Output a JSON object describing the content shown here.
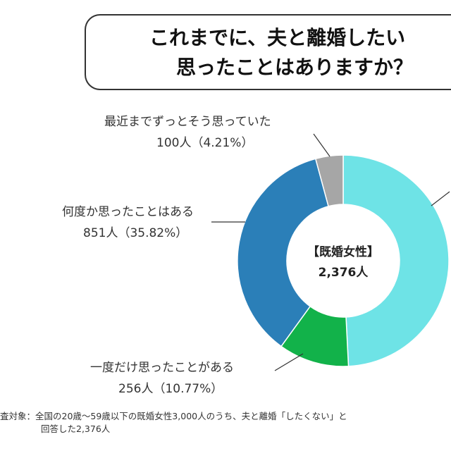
{
  "title": {
    "line1": "これまでに、夫と離婚したい",
    "line2": "思ったことはありますか？"
  },
  "center_label": {
    "line1": "【既婚女性】",
    "line2": "2,376人"
  },
  "chart_data": {
    "type": "pie",
    "donut": true,
    "total": 2376,
    "slices": [
      {
        "label": "",
        "value": 1169,
        "color": "#6ee3e6"
      },
      {
        "label": "一度だけ思ったことがある",
        "value": 256,
        "text": "256人（10.77%）",
        "color": "#12b24a"
      },
      {
        "label": "何度か思ったことはある",
        "value": 851,
        "text": "851人（35.82%）",
        "color": "#2b7fb8"
      },
      {
        "label": "最近までずっとそう思っていた",
        "value": 100,
        "text": "100人（4.21%）",
        "color": "#a6a6a6"
      }
    ]
  },
  "footnote": {
    "line1": "査対象：全国の20歳〜59歳以下の既婚女性3,000人のうち、夫と離婚「したくない」と",
    "line2": "回答した2,376人"
  }
}
